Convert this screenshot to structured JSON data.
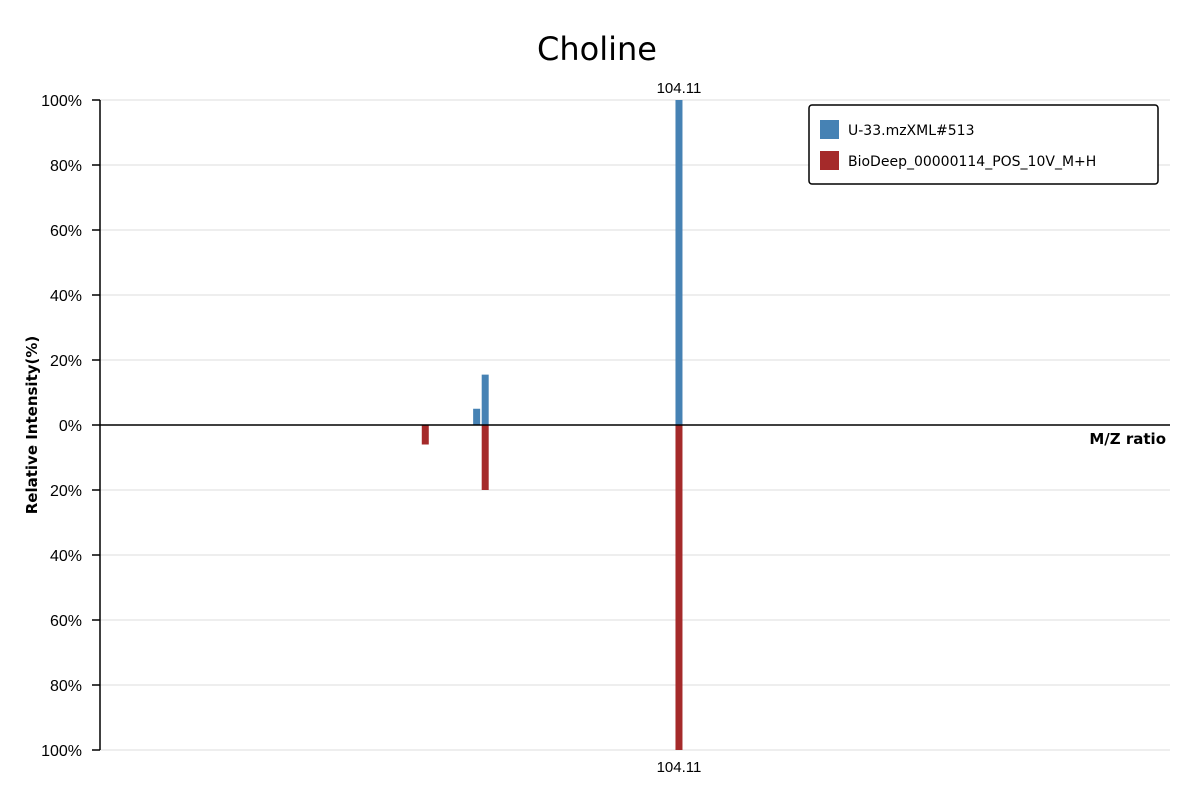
{
  "chart_data": {
    "type": "bar",
    "title": "Choline",
    "xlabel": "M/Z ratio",
    "ylabel": "Relative Intensity(%)",
    "ylim": [
      -100,
      100
    ],
    "y_tick_labels": [
      "100%",
      "80%",
      "60%",
      "40%",
      "20%",
      "0%",
      "20%",
      "40%",
      "60%",
      "80%",
      "100%"
    ],
    "y_tick_values": [
      100,
      80,
      60,
      40,
      20,
      0,
      -20,
      -40,
      -60,
      -80,
      -100
    ],
    "xlim": [
      50,
      150
    ],
    "grid": true,
    "legend_position": "top-right",
    "series": [
      {
        "name": "U-33.mzXML#513",
        "color": "#4682b4",
        "direction": "up",
        "x": [
          85.2,
          86.0,
          104.11
        ],
        "values": [
          5,
          15.5,
          100
        ]
      },
      {
        "name": "BioDeep_00000114_POS_10V_M+H",
        "color": "#a52a2a",
        "direction": "down",
        "x": [
          80.4,
          86.0,
          104.11
        ],
        "values": [
          6,
          20,
          100
        ]
      }
    ],
    "annotations": [
      {
        "text": "104.11",
        "series": 0,
        "x": 104.11
      },
      {
        "text": "104.11",
        "series": 1,
        "x": 104.11
      }
    ]
  }
}
